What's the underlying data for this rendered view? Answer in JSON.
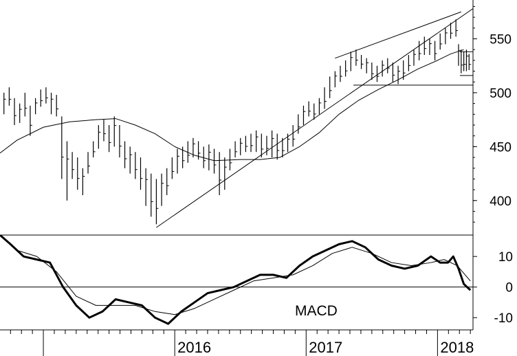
{
  "chart_data": [
    {
      "type": "line",
      "subtype": "ohlc-bars",
      "title": "",
      "xlabel": "",
      "ylabel": "",
      "ylim": [
        368,
        586
      ],
      "y_ticks": [
        {
          "value": 550,
          "label": "550"
        },
        {
          "value": 500,
          "label": "500"
        },
        {
          "value": 450,
          "label": "450"
        },
        {
          "value": 400,
          "label": "400"
        }
      ],
      "x_ticks": [
        {
          "value": 2016.0,
          "label": "2016"
        },
        {
          "value": 2017.0,
          "label": "2017"
        },
        {
          "value": 2018.0,
          "label": "2018"
        }
      ],
      "xlim": [
        2014.67,
        2018.27
      ],
      "series": [
        {
          "type": "bars",
          "points": [
            [
              2014.7,
              500,
              480
            ],
            [
              2014.74,
              505,
              488
            ],
            [
              2014.78,
              495,
              470
            ],
            [
              2014.82,
              490,
              472
            ],
            [
              2014.86,
              500,
              478
            ],
            [
              2014.9,
              488,
              460
            ],
            [
              2014.94,
              495,
              480
            ],
            [
              2014.98,
              503,
              487
            ],
            [
              2015.02,
              505,
              490
            ],
            [
              2015.06,
              500,
              480
            ],
            [
              2015.1,
              498,
              478
            ],
            [
              2015.14,
              478,
              420
            ],
            [
              2015.18,
              455,
              400
            ],
            [
              2015.22,
              445,
              420
            ],
            [
              2015.26,
              440,
              410
            ],
            [
              2015.3,
              430,
              405
            ],
            [
              2015.34,
              445,
              425
            ],
            [
              2015.38,
              455,
              440
            ],
            [
              2015.42,
              470,
              448
            ],
            [
              2015.46,
              475,
              455
            ],
            [
              2015.5,
              470,
              445
            ],
            [
              2015.54,
              478,
              450
            ],
            [
              2015.58,
              470,
              440
            ],
            [
              2015.62,
              455,
              430
            ],
            [
              2015.66,
              450,
              425
            ],
            [
              2015.7,
              445,
              420
            ],
            [
              2015.74,
              440,
              410
            ],
            [
              2015.78,
              430,
              395
            ],
            [
              2015.82,
              425,
              385
            ],
            [
              2015.86,
              420,
              378
            ],
            [
              2015.9,
              425,
              395
            ],
            [
              2015.94,
              430,
              405
            ],
            [
              2015.98,
              440,
              420
            ],
            [
              2016.02,
              448,
              425
            ],
            [
              2016.06,
              450,
              430
            ],
            [
              2016.1,
              455,
              435
            ],
            [
              2016.14,
              458,
              440
            ],
            [
              2016.18,
              455,
              438
            ],
            [
              2016.22,
              450,
              430
            ],
            [
              2016.26,
              452,
              428
            ],
            [
              2016.3,
              448,
              425
            ],
            [
              2016.34,
              445,
              405
            ],
            [
              2016.38,
              440,
              410
            ],
            [
              2016.42,
              448,
              428
            ],
            [
              2016.46,
              455,
              440
            ],
            [
              2016.5,
              458,
              442
            ],
            [
              2016.54,
              460,
              445
            ],
            [
              2016.58,
              462,
              445
            ],
            [
              2016.62,
              465,
              445
            ],
            [
              2016.66,
              462,
              440
            ],
            [
              2016.7,
              460,
              442
            ],
            [
              2016.74,
              465,
              440
            ],
            [
              2016.78,
              462,
              438
            ],
            [
              2016.82,
              458,
              440
            ],
            [
              2016.86,
              462,
              445
            ],
            [
              2016.9,
              470,
              450
            ],
            [
              2016.94,
              480,
              462
            ],
            [
              2016.98,
              488,
              470
            ],
            [
              2017.02,
              492,
              478
            ],
            [
              2017.06,
              490,
              475
            ],
            [
              2017.1,
              495,
              480
            ],
            [
              2017.14,
              505,
              485
            ],
            [
              2017.18,
              515,
              495
            ],
            [
              2017.22,
              520,
              505
            ],
            [
              2017.26,
              525,
              510
            ],
            [
              2017.3,
              530,
              515
            ],
            [
              2017.34,
              538,
              520
            ],
            [
              2017.38,
              540,
              525
            ],
            [
              2017.42,
              535,
              522
            ],
            [
              2017.46,
              532,
              518
            ],
            [
              2017.5,
              528,
              512
            ],
            [
              2017.54,
              525,
              510
            ],
            [
              2017.58,
              530,
              515
            ],
            [
              2017.62,
              532,
              518
            ],
            [
              2017.66,
              528,
              510
            ],
            [
              2017.7,
              525,
              508
            ],
            [
              2017.74,
              530,
              512
            ],
            [
              2017.78,
              535,
              520
            ],
            [
              2017.82,
              540,
              525
            ],
            [
              2017.86,
              548,
              530
            ],
            [
              2017.9,
              552,
              535
            ],
            [
              2017.94,
              550,
              535
            ],
            [
              2017.98,
              548,
              530
            ],
            [
              2018.02,
              555,
              540
            ],
            [
              2018.06,
              560,
              545
            ],
            [
              2018.1,
              565,
              550
            ],
            [
              2018.14,
              568,
              552
            ],
            [
              2018.16,
              545,
              525
            ],
            [
              2018.18,
              540,
              518
            ],
            [
              2018.2,
              538,
              520
            ],
            [
              2018.22,
              540,
              520
            ],
            [
              2018.24,
              536,
              521
            ]
          ]
        },
        {
          "type": "moving-average",
          "points": [
            [
              2014.67,
              444
            ],
            [
              2014.8,
              456
            ],
            [
              2015.0,
              468
            ],
            [
              2015.2,
              473
            ],
            [
              2015.4,
              475
            ],
            [
              2015.55,
              476
            ],
            [
              2015.7,
              470
            ],
            [
              2015.85,
              462
            ],
            [
              2016.0,
              450
            ],
            [
              2016.15,
              442
            ],
            [
              2016.3,
              437
            ],
            [
              2016.5,
              438
            ],
            [
              2016.65,
              438
            ],
            [
              2016.8,
              440
            ],
            [
              2016.95,
              450
            ],
            [
              2017.1,
              463
            ],
            [
              2017.25,
              480
            ],
            [
              2017.4,
              493
            ],
            [
              2017.55,
              503
            ],
            [
              2017.7,
              512
            ],
            [
              2017.85,
              522
            ],
            [
              2018.0,
              530
            ],
            [
              2018.1,
              536
            ],
            [
              2018.2,
              540
            ]
          ]
        },
        {
          "type": "trendlines",
          "segments": [
            [
              [
                2015.86,
                375
              ],
              [
                2018.27,
                578
              ]
            ],
            [
              [
                2017.22,
                532
              ],
              [
                2018.18,
                575
              ]
            ],
            [
              [
                2017.36,
                507
              ],
              [
                2018.27,
                507
              ]
            ],
            [
              [
                2018.17,
                538
              ],
              [
                2018.27,
                538
              ]
            ],
            [
              [
                2018.17,
                516
              ],
              [
                2018.27,
                516
              ]
            ]
          ]
        }
      ]
    },
    {
      "type": "line",
      "title": "",
      "label": "MACD",
      "xlabel": "",
      "ylabel": "",
      "ylim": [
        -14,
        17
      ],
      "y_ticks": [
        {
          "value": 10,
          "label": "10"
        },
        {
          "value": 0,
          "label": "0"
        },
        {
          "value": -10,
          "label": "-10"
        }
      ],
      "zero_line": true,
      "xlim": [
        2014.67,
        2018.27
      ],
      "series": [
        {
          "style": "thick",
          "points": [
            [
              2014.67,
              18
            ],
            [
              2014.75,
              14
            ],
            [
              2014.85,
              10
            ],
            [
              2014.95,
              9
            ],
            [
              2015.05,
              8
            ],
            [
              2015.15,
              0
            ],
            [
              2015.25,
              -6
            ],
            [
              2015.35,
              -10
            ],
            [
              2015.45,
              -8
            ],
            [
              2015.55,
              -4
            ],
            [
              2015.65,
              -5
            ],
            [
              2015.75,
              -6
            ],
            [
              2015.85,
              -10
            ],
            [
              2015.95,
              -12
            ],
            [
              2016.05,
              -8
            ],
            [
              2016.15,
              -5
            ],
            [
              2016.25,
              -2
            ],
            [
              2016.35,
              -1
            ],
            [
              2016.45,
              0
            ],
            [
              2016.55,
              2
            ],
            [
              2016.65,
              4
            ],
            [
              2016.75,
              4
            ],
            [
              2016.85,
              3
            ],
            [
              2016.95,
              7
            ],
            [
              2017.05,
              10
            ],
            [
              2017.15,
              12
            ],
            [
              2017.25,
              14
            ],
            [
              2017.35,
              15
            ],
            [
              2017.45,
              13
            ],
            [
              2017.55,
              9
            ],
            [
              2017.65,
              7
            ],
            [
              2017.75,
              6
            ],
            [
              2017.85,
              7
            ],
            [
              2017.95,
              10
            ],
            [
              2018.02,
              8
            ],
            [
              2018.08,
              8
            ],
            [
              2018.12,
              10
            ],
            [
              2018.16,
              6
            ],
            [
              2018.2,
              1
            ],
            [
              2018.25,
              -1
            ]
          ]
        },
        {
          "style": "thin",
          "points": [
            [
              2014.67,
              18
            ],
            [
              2014.8,
              12
            ],
            [
              2014.95,
              10
            ],
            [
              2015.1,
              5
            ],
            [
              2015.25,
              -3
            ],
            [
              2015.4,
              -6
            ],
            [
              2015.55,
              -6
            ],
            [
              2015.7,
              -6
            ],
            [
              2015.85,
              -8
            ],
            [
              2016.0,
              -9
            ],
            [
              2016.15,
              -7
            ],
            [
              2016.3,
              -4
            ],
            [
              2016.45,
              -1
            ],
            [
              2016.6,
              2
            ],
            [
              2016.75,
              3
            ],
            [
              2016.9,
              4
            ],
            [
              2017.05,
              7
            ],
            [
              2017.2,
              11
            ],
            [
              2017.35,
              13
            ],
            [
              2017.5,
              11
            ],
            [
              2017.65,
              8
            ],
            [
              2017.8,
              7
            ],
            [
              2017.95,
              8
            ],
            [
              2018.05,
              9
            ],
            [
              2018.15,
              7
            ],
            [
              2018.25,
              2
            ]
          ]
        }
      ]
    }
  ]
}
